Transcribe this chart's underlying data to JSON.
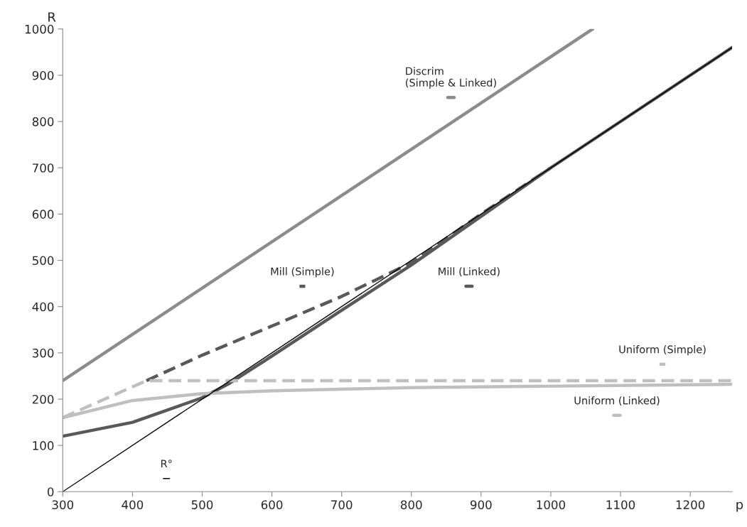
{
  "chart_data": {
    "type": "line",
    "xlabel": "p",
    "ylabel": "R",
    "xlim": [
      300,
      1260
    ],
    "xticks": [
      300,
      400,
      500,
      600,
      700,
      800,
      900,
      1000,
      1100,
      1200
    ],
    "ylim": [
      0,
      1000
    ],
    "yticks": [
      0,
      100,
      200,
      300,
      400,
      500,
      600,
      700,
      800,
      900,
      1000
    ],
    "grid": false,
    "legend": "right",
    "series": [
      {
        "name": "Discrim\n(Simple & Linked)",
        "color": "#8c8c8c",
        "line_style": "solid",
        "x": [
          300,
          1060
        ],
        "values": [
          240,
          1000
        ]
      },
      {
        "name": "Mill (Simple)",
        "color": "#595959",
        "line_style": "dashed",
        "x": [
          420,
          500,
          600,
          700,
          800,
          900,
          1000
        ],
        "values": [
          240,
          295,
          358,
          422,
          495,
          600,
          700
        ]
      },
      {
        "name": "Mill (Linked)",
        "color": "#595959",
        "line_style": "solid",
        "x": [
          300,
          400,
          500,
          540,
          600,
          700,
          800,
          900,
          1000,
          1260
        ],
        "values": [
          120,
          150,
          203,
          235,
          293,
          392,
          490,
          595,
          700,
          960
        ]
      },
      {
        "name": "Uniform (Simple)",
        "color": "#bfbfbf",
        "line_style": "dashed",
        "x": [
          300,
          420,
          1260
        ],
        "values": [
          160,
          240,
          240
        ]
      },
      {
        "name": "Uniform (Linked)",
        "color": "#bfbfbf",
        "line_style": "solid",
        "x": [
          300,
          400,
          500,
          600,
          800,
          1260
        ],
        "values": [
          160,
          197,
          212,
          218,
          225,
          232
        ]
      },
      {
        "name": "R°",
        "color": "#000000",
        "line_style": "solid",
        "x": [
          300,
          1260
        ],
        "values": [
          0,
          960
        ]
      }
    ]
  }
}
